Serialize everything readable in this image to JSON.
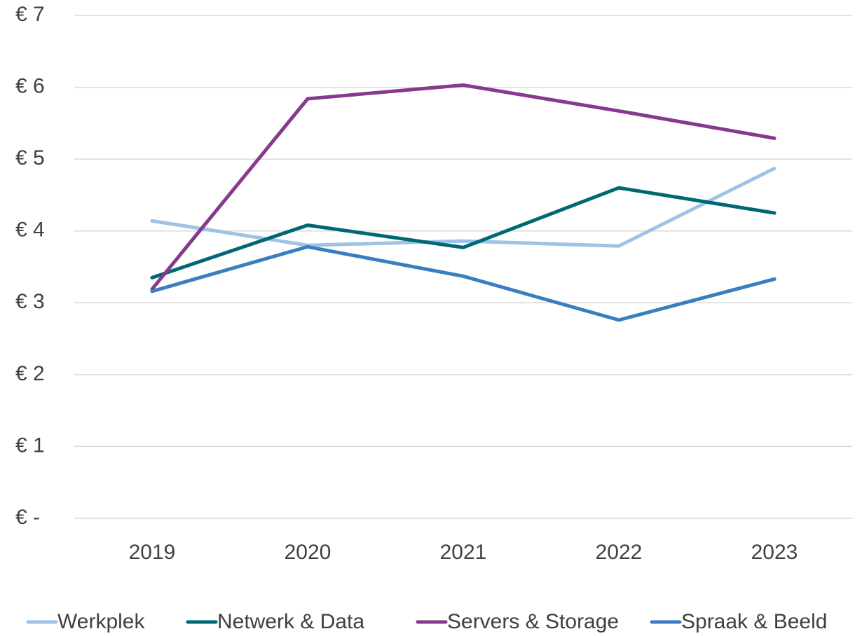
{
  "chart_data": {
    "type": "line",
    "categories": [
      "2019",
      "2020",
      "2021",
      "2022",
      "2023"
    ],
    "series": [
      {
        "name": "Werkplek",
        "color": "#9dc3e6",
        "values": [
          4.14,
          3.8,
          3.86,
          3.79,
          4.87
        ]
      },
      {
        "name": "Netwerk & Data",
        "color": "#006874",
        "values": [
          3.35,
          4.08,
          3.77,
          4.6,
          4.25
        ]
      },
      {
        "name": "Servers & Storage",
        "color": "#863a8c",
        "values": [
          3.19,
          5.84,
          6.03,
          5.67,
          5.29
        ]
      },
      {
        "name": "Spraak & Beeld",
        "color": "#3a7dc0",
        "values": [
          3.16,
          3.78,
          3.37,
          2.76,
          3.33
        ]
      }
    ],
    "ylim": [
      0,
      7
    ],
    "yticks": [
      {
        "value": 0,
        "label": "€ -"
      },
      {
        "value": 1,
        "label": "€ 1"
      },
      {
        "value": 2,
        "label": "€ 2"
      },
      {
        "value": 3,
        "label": "€ 3"
      },
      {
        "value": 4,
        "label": "€ 4"
      },
      {
        "value": 5,
        "label": "€ 5"
      },
      {
        "value": 6,
        "label": "€ 6"
      },
      {
        "value": 7,
        "label": "€ 7"
      }
    ],
    "grid": true,
    "legend": "bottom"
  }
}
